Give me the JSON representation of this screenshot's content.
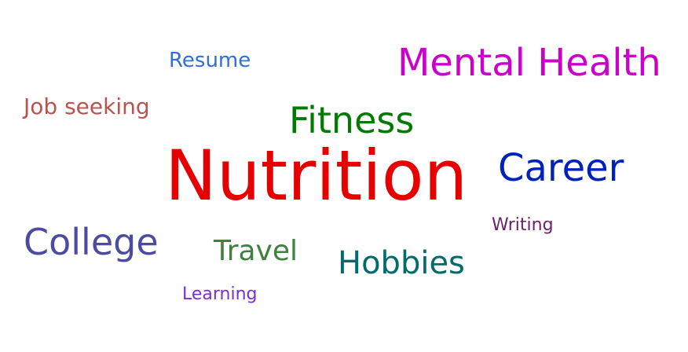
{
  "word_cloud": {
    "words": {
      "nutrition": {
        "text": "Nutrition",
        "color": "#e60000"
      },
      "mental_health": {
        "text": "Mental Health",
        "color": "#cc00cc"
      },
      "career": {
        "text": "Career",
        "color": "#0022bb"
      },
      "college": {
        "text": "College",
        "color": "#4b4ba4"
      },
      "fitness": {
        "text": "Fitness",
        "color": "#007a00"
      },
      "hobbies": {
        "text": "Hobbies",
        "color": "#006b6b"
      },
      "travel": {
        "text": "Travel",
        "color": "#3f7f3f"
      },
      "job_seeking": {
        "text": "Job seeking",
        "color": "#b85450"
      },
      "resume": {
        "text": "Resume",
        "color": "#2f6fd6"
      },
      "writing": {
        "text": "Writing",
        "color": "#6b1f6b"
      },
      "learning": {
        "text": "Learning",
        "color": "#7a2fd6"
      }
    }
  }
}
